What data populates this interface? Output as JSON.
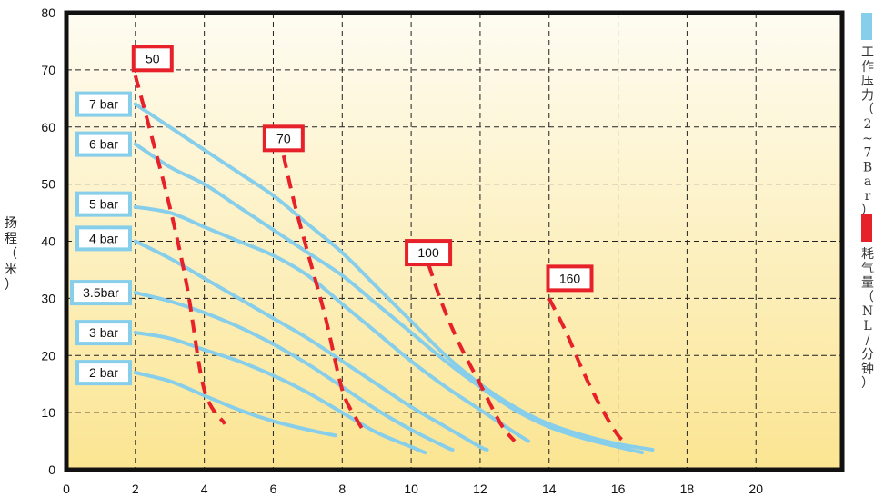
{
  "chart_data": {
    "type": "line",
    "xlabel": "",
    "ylabel": [
      "扬",
      "程",
      "（",
      "米",
      "）"
    ],
    "xlim": [
      0,
      22.5
    ],
    "ylim": [
      0,
      80
    ],
    "xticks": [
      0,
      2,
      4,
      6,
      8,
      10,
      12,
      14,
      16,
      18,
      20
    ],
    "yticks": [
      0,
      10,
      20,
      30,
      40,
      50,
      60,
      70,
      80
    ],
    "grid": true,
    "background": {
      "top": "#fefcf2",
      "bottom": "#fbe592"
    },
    "colors": {
      "pressure": "#87ceeb",
      "air": "#e6212a",
      "box_fill": "#ffffff",
      "frame": "#111111"
    },
    "legend": {
      "placement": "right",
      "entries": [
        {
          "color": "#87ceeb",
          "chars": [
            "工",
            "作",
            "压",
            "力",
            "（",
            "2",
            "~",
            "7",
            "B",
            "a",
            "r",
            "）"
          ]
        },
        {
          "color": "#e6212a",
          "chars": [
            "耗",
            "气",
            "量",
            "（",
            "N",
            "L",
            "/",
            "分",
            "钟",
            "）"
          ]
        }
      ]
    },
    "pressure_series": [
      {
        "name": "7 bar",
        "x": [
          2.0,
          3.0,
          4.0,
          5.0,
          6.0,
          7.0,
          8.0,
          9.0,
          10.0,
          11.0,
          12.0,
          13.0,
          14.0,
          15.0,
          16.0,
          17.0
        ],
        "y": [
          64.0,
          60.0,
          56.0,
          52.0,
          48.0,
          43.0,
          38.0,
          32.0,
          26.0,
          20.0,
          15.0,
          11.0,
          8.0,
          6.0,
          4.5,
          3.5
        ]
      },
      {
        "name": "6 bar",
        "x": [
          2.0,
          3.0,
          4.0,
          5.0,
          6.0,
          7.0,
          8.0,
          9.0,
          10.0,
          11.0,
          12.0,
          13.0,
          14.0,
          15.0,
          16.0,
          16.7
        ],
        "y": [
          57.0,
          53.0,
          50.0,
          46.0,
          42.0,
          38.0,
          34.0,
          29.0,
          24.0,
          19.0,
          14.5,
          10.5,
          7.5,
          5.5,
          4.0,
          3.0
        ]
      },
      {
        "name": "5 bar",
        "x": [
          2.0,
          3.0,
          4.0,
          5.0,
          6.0,
          7.0,
          8.0,
          9.0,
          10.0,
          11.0,
          12.0,
          13.0,
          13.4
        ],
        "y": [
          46.0,
          45.0,
          42.5,
          40.0,
          37.5,
          34.0,
          29.0,
          24.0,
          19.0,
          14.5,
          10.5,
          6.5,
          5.0
        ]
      },
      {
        "name": "4 bar",
        "x": [
          2.0,
          3.0,
          4.0,
          5.0,
          6.0,
          7.0,
          8.0,
          9.0,
          10.0,
          11.0,
          12.0,
          12.2
        ],
        "y": [
          40.0,
          37.0,
          33.5,
          30.0,
          26.5,
          23.0,
          19.0,
          15.0,
          11.0,
          7.5,
          4.0,
          3.5
        ]
      },
      {
        "name": "3.5bar",
        "x": [
          2.0,
          3.0,
          4.0,
          5.0,
          6.0,
          7.0,
          8.0,
          9.0,
          10.0,
          11.0,
          11.2
        ],
        "y": [
          31.0,
          29.5,
          27.5,
          25.0,
          22.0,
          18.5,
          14.5,
          10.5,
          7.0,
          4.0,
          3.5
        ]
      },
      {
        "name": "3 bar",
        "x": [
          2.0,
          3.0,
          4.0,
          5.0,
          6.0,
          7.0,
          8.0,
          9.0,
          10.0,
          10.4
        ],
        "y": [
          24.0,
          23.0,
          21.0,
          19.0,
          16.5,
          13.5,
          10.0,
          6.5,
          4.0,
          3.0
        ]
      },
      {
        "name": "2 bar",
        "x": [
          2.0,
          3.0,
          4.0,
          5.0,
          6.0,
          7.0,
          7.8
        ],
        "y": [
          17.0,
          15.5,
          13.0,
          10.5,
          8.5,
          7.0,
          6.0
        ]
      }
    ],
    "air_series": [
      {
        "name": "50",
        "x": [
          2.0,
          2.4,
          3.0,
          3.5,
          4.0,
          4.6
        ],
        "y": [
          69.0,
          60.0,
          46.0,
          32.0,
          14.0,
          8.0
        ]
      },
      {
        "name": "70",
        "x": [
          6.3,
          6.6,
          7.0,
          7.5,
          8.0,
          8.4,
          8.6
        ],
        "y": [
          55.0,
          47.0,
          38.0,
          27.0,
          14.0,
          9.0,
          7.0
        ]
      },
      {
        "name": "100",
        "x": [
          10.5,
          10.9,
          11.4,
          12.0,
          12.6,
          13.0
        ],
        "y": [
          36.0,
          29.0,
          22.0,
          15.0,
          8.0,
          5.0
        ]
      },
      {
        "name": "160",
        "x": [
          14.0,
          14.5,
          15.0,
          15.5,
          16.0,
          16.3
        ],
        "y": [
          30.0,
          24.0,
          17.0,
          11.0,
          6.0,
          4.5
        ]
      }
    ],
    "pressure_label_anchor_y": [
      64.0,
      57.0,
      46.5,
      40.5,
      31.0,
      24.0,
      17.0
    ],
    "air_label_anchor": [
      {
        "x": 2.5,
        "y": 72.0
      },
      {
        "x": 6.3,
        "y": 58.0
      },
      {
        "x": 10.5,
        "y": 38.0
      },
      {
        "x": 14.6,
        "y": 33.5
      }
    ]
  }
}
